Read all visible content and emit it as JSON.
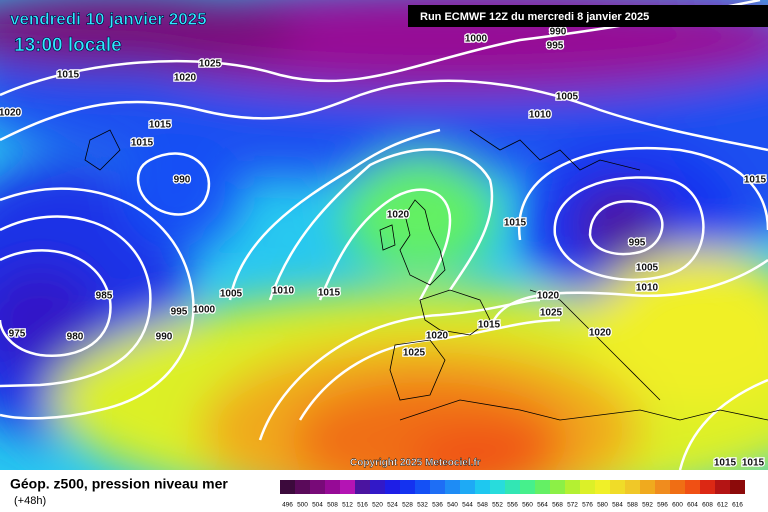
{
  "header": {
    "date": "vendredi 10 janvier 2025",
    "time": "13:00 locale",
    "run": "Run ECMWF 12Z du mercredi 8 janvier 2025"
  },
  "map": {
    "isobar_labels": [
      "1000",
      "990",
      "995",
      "1025",
      "1015",
      "1020",
      "1020",
      "1005",
      "1010",
      "1015",
      "1015",
      "990",
      "1015",
      "1020",
      "1015",
      "995",
      "1005",
      "985",
      "1005",
      "1010",
      "1015",
      "1020",
      "1010",
      "1025",
      "995",
      "1000",
      "1015",
      "975",
      "980",
      "990",
      "1020",
      "1020",
      "1025",
      "1015",
      "1015"
    ],
    "copyright": "Copyright 2025 Meteociel.fr"
  },
  "footer": {
    "title": "Géop. z500, pression niveau mer",
    "subtitle": "(+48h)"
  },
  "legend": {
    "levels": [
      496,
      500,
      504,
      508,
      512,
      516,
      520,
      524,
      528,
      532,
      536,
      540,
      544,
      548,
      552,
      556,
      560,
      564,
      568,
      572,
      576,
      580,
      584,
      588,
      592,
      596,
      600,
      604,
      608,
      612,
      616
    ],
    "colors": [
      "#3c0a3c",
      "#5a0a5a",
      "#780a78",
      "#960a96",
      "#b414b4",
      "#4b14a0",
      "#3219c8",
      "#1e1ee6",
      "#1432f0",
      "#1450f5",
      "#1e6ef5",
      "#1e8cf5",
      "#1eaaf5",
      "#1ec8f0",
      "#28dcdc",
      "#32e6b4",
      "#46f08c",
      "#64f064",
      "#8cf046",
      "#b4f032",
      "#dcf028",
      "#f0f028",
      "#f0dc28",
      "#f0c828",
      "#f0aa1e",
      "#f08c1e",
      "#f06e14",
      "#f05014",
      "#dc2814",
      "#b41414",
      "#8c0a0a"
    ]
  }
}
